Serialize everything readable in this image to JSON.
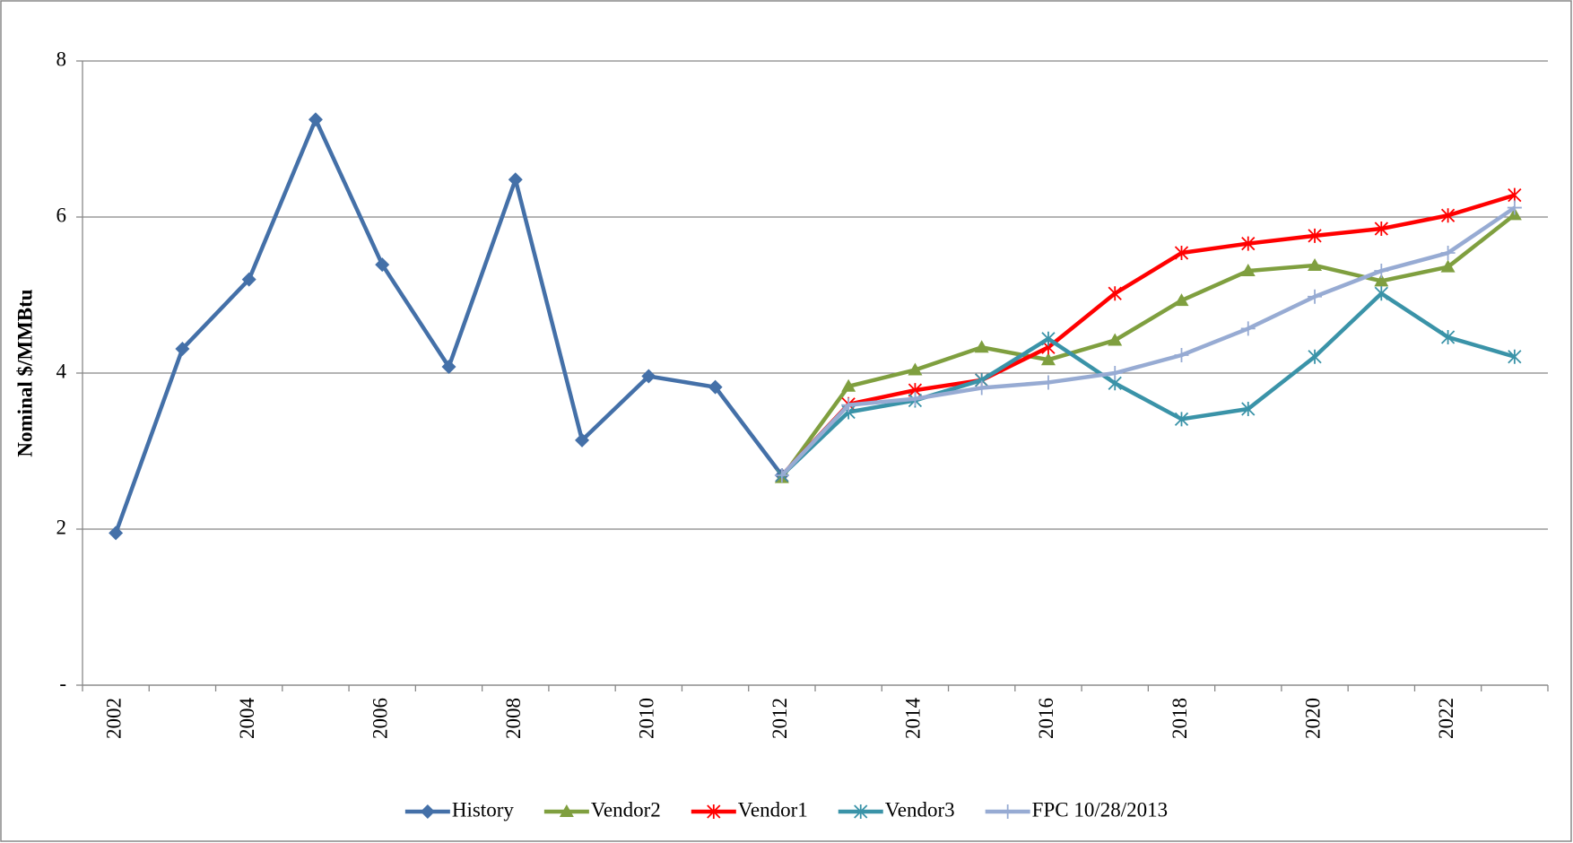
{
  "chart_data": {
    "type": "line",
    "y_label": "Nominal $/MMBtu",
    "categories": [
      "2002",
      null,
      "2004",
      null,
      "2006",
      null,
      "2008",
      null,
      "2010",
      null,
      "2012",
      null,
      "2014",
      null,
      "2016",
      null,
      "2018",
      null,
      "2020",
      null,
      "2022",
      null
    ],
    "ylim": [
      0,
      8
    ],
    "yticks": [
      {
        "value": 0,
        "label": "-"
      },
      2,
      4,
      6,
      8
    ],
    "grid": true,
    "legend": "bottom",
    "series": [
      {
        "name": "History",
        "color": "#4470a8",
        "marker": "diamond",
        "values": [
          1.95,
          4.31,
          5.2,
          7.25,
          5.39,
          4.08,
          6.48,
          3.14,
          3.96,
          3.82,
          2.69,
          null,
          null,
          null,
          null,
          null,
          null,
          null,
          null,
          null,
          null,
          null
        ]
      },
      {
        "name": "Vendor2",
        "color": "#7f9f3f",
        "marker": "triangle",
        "values": [
          null,
          null,
          null,
          null,
          null,
          null,
          null,
          null,
          null,
          null,
          2.66,
          3.83,
          4.04,
          4.33,
          4.17,
          4.42,
          4.93,
          5.31,
          5.38,
          5.18,
          5.36,
          6.03
        ]
      },
      {
        "name": "Vendor1",
        "color": "#ff0000",
        "marker": "star",
        "values": [
          null,
          null,
          null,
          null,
          null,
          null,
          null,
          null,
          null,
          null,
          2.69,
          3.6,
          3.78,
          3.91,
          4.33,
          5.02,
          5.54,
          5.66,
          5.76,
          5.85,
          6.02,
          6.28
        ]
      },
      {
        "name": "Vendor3",
        "color": "#3a93a8",
        "marker": "star",
        "values": [
          null,
          null,
          null,
          null,
          null,
          null,
          null,
          null,
          null,
          null,
          2.69,
          3.5,
          3.65,
          3.91,
          4.44,
          3.87,
          3.41,
          3.54,
          4.21,
          5.02,
          4.46,
          4.21
        ]
      },
      {
        "name": "FPC 10/28/2013",
        "color": "#97abd3",
        "marker": "plus",
        "values": [
          null,
          null,
          null,
          null,
          null,
          null,
          null,
          null,
          null,
          null,
          2.69,
          3.59,
          3.67,
          3.81,
          3.88,
          4.0,
          4.23,
          4.57,
          4.98,
          5.31,
          5.54,
          6.12
        ]
      }
    ]
  }
}
